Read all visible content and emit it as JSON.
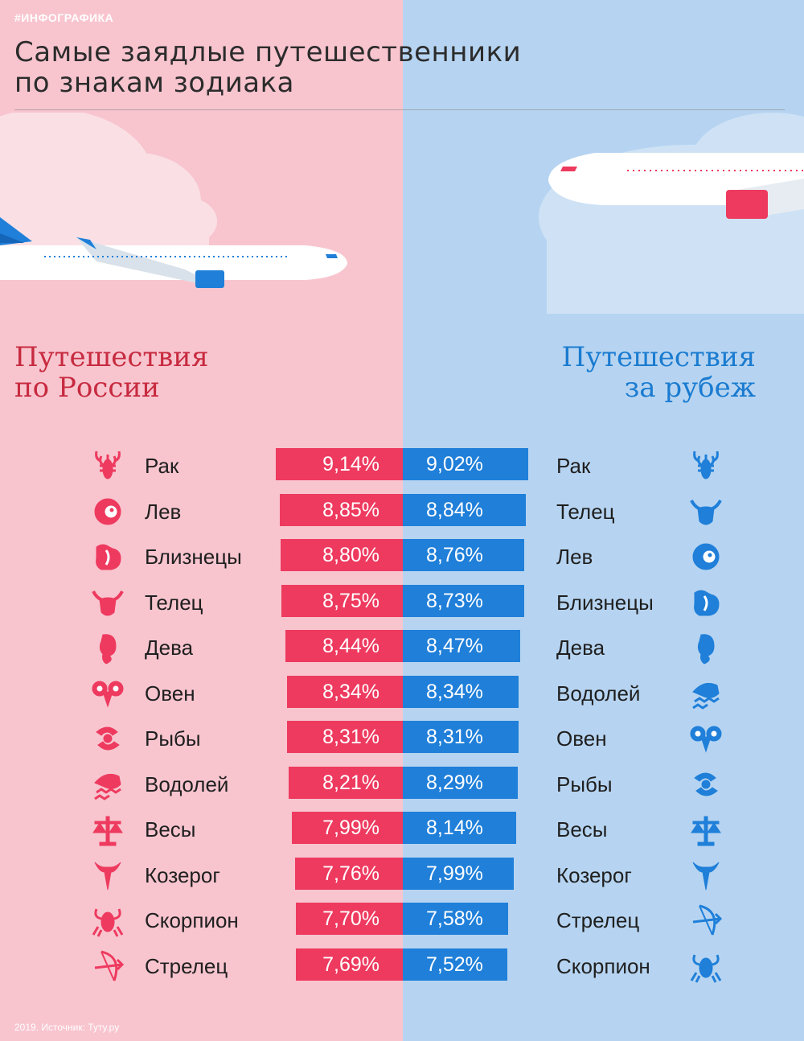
{
  "tag": "#ИНФОГРАФИКА",
  "title_line1": "Самые заядлые путешественники",
  "title_line2": "по знакам зодиака",
  "left_heading": "Путешествия\nпо России",
  "right_heading": "Путешествия\nза рубеж",
  "footer": "2019. Источник: Туту.ру",
  "colors": {
    "left_bg": "#f8c5cf",
    "right_bg": "#b6d4f1",
    "left_bar": "#ee3a5f",
    "right_bar": "#1f7fd9",
    "left_heading": "#c72a3f",
    "right_heading": "#1a7bd0"
  },
  "chart_data": {
    "type": "bar",
    "orientation": "diverging-horizontal",
    "unit": "%",
    "series": [
      {
        "name": "Путешествия по России",
        "categories": [
          "Рак",
          "Лев",
          "Близнецы",
          "Телец",
          "Дева",
          "Овен",
          "Рыбы",
          "Водолей",
          "Весы",
          "Козерог",
          "Скорпион",
          "Стрелец"
        ],
        "icons": [
          "cancer-icon",
          "leo-icon",
          "gemini-icon",
          "taurus-icon",
          "virgo-icon",
          "aries-icon",
          "pisces-icon",
          "aquarius-icon",
          "libra-icon",
          "capricorn-icon",
          "scorpio-icon",
          "sagittarius-icon"
        ],
        "values": [
          9.14,
          8.85,
          8.8,
          8.75,
          8.44,
          8.34,
          8.31,
          8.21,
          7.99,
          7.76,
          7.7,
          7.69
        ],
        "labels": [
          "9,14%",
          "8,85%",
          "8,80%",
          "8,75%",
          "8,44%",
          "8,34%",
          "8,31%",
          "8,21%",
          "7,99%",
          "7,76%",
          "7,70%",
          "7,69%"
        ]
      },
      {
        "name": "Путешествия за рубеж",
        "categories": [
          "Рак",
          "Телец",
          "Лев",
          "Близнецы",
          "Дева",
          "Водолей",
          "Овен",
          "Рыбы",
          "Весы",
          "Козерог",
          "Стрелец",
          "Скорпион"
        ],
        "icons": [
          "cancer-icon",
          "taurus-icon",
          "leo-icon",
          "gemini-icon",
          "virgo-icon",
          "aquarius-icon",
          "aries-icon",
          "pisces-icon",
          "libra-icon",
          "capricorn-icon",
          "sagittarius-icon",
          "scorpio-icon"
        ],
        "values": [
          9.02,
          8.84,
          8.76,
          8.73,
          8.47,
          8.34,
          8.31,
          8.29,
          8.14,
          7.99,
          7.58,
          7.52
        ],
        "labels": [
          "9,02%",
          "8,84%",
          "8,76%",
          "8,73%",
          "8,47%",
          "8,34%",
          "8,31%",
          "8,29%",
          "8,14%",
          "7,99%",
          "7,58%",
          "7,52%"
        ]
      }
    ]
  }
}
